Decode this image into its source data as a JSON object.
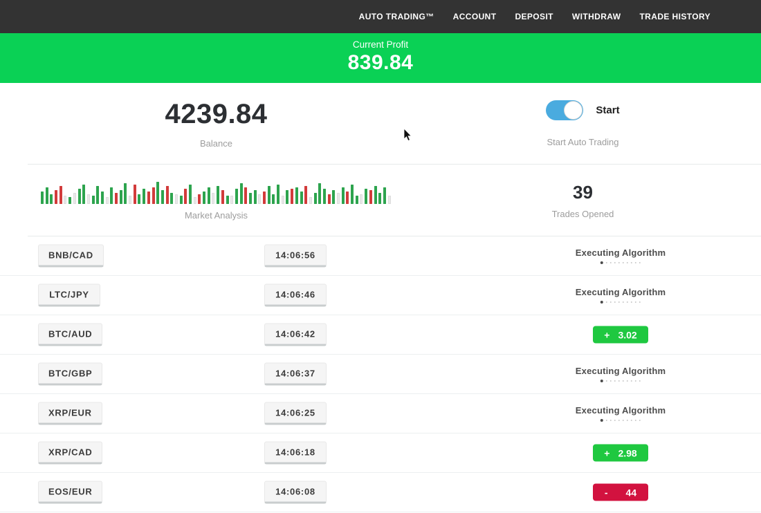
{
  "nav": {
    "items": [
      "AUTO TRADING™",
      "ACCOUNT",
      "DEPOSIT",
      "WITHDRAW",
      "TRADE HISTORY"
    ]
  },
  "profit_banner": {
    "label": "Current Profit",
    "value": "839.84"
  },
  "stats": {
    "balance": {
      "value": "4239.84",
      "label": "Balance"
    },
    "auto_trading": {
      "toggle_label": "Start",
      "label": "Start Auto Trading",
      "toggle_on": true
    },
    "trades": {
      "value": "39",
      "label": "Trades Opened"
    }
  },
  "chart_data": {
    "type": "bar",
    "title": "Market Analysis",
    "note": "decorative mini candlestick strip; encoded as color(g=green,r=red,w=light-gray)+height(px)",
    "bars": [
      "g18",
      "g24",
      "g14",
      "r20",
      "r26",
      "w12",
      "g10",
      "w16",
      "g22",
      "g28",
      "w14",
      "g12",
      "g26",
      "g18",
      "w10",
      "g24",
      "r16",
      "g20",
      "g30",
      "w12",
      "r28",
      "g14",
      "g22",
      "r18",
      "r24",
      "g32",
      "g20",
      "r26",
      "g16",
      "w14",
      "g12",
      "r22",
      "g28",
      "w10",
      "r14",
      "g18",
      "g24",
      "w16",
      "g26",
      "r20",
      "g12",
      "w12",
      "g22",
      "g30",
      "r24",
      "g16",
      "g20",
      "w14",
      "r18",
      "g26",
      "g14",
      "g28",
      "w12",
      "g20",
      "r22",
      "g24",
      "g18",
      "r26",
      "w10",
      "g16",
      "g30",
      "g22",
      "r14",
      "g20",
      "w16",
      "g24",
      "r18",
      "g28",
      "g12",
      "w14",
      "g22",
      "r20",
      "g26",
      "g16",
      "g24",
      "w12"
    ]
  },
  "trades_table": {
    "loader_dots": 10,
    "executing_label": "Executing Algorithm",
    "rows": [
      {
        "pair": "BNB/CAD",
        "time": "14:06:56",
        "status": "executing"
      },
      {
        "pair": "LTC/JPY",
        "time": "14:06:46",
        "status": "executing"
      },
      {
        "pair": "BTC/AUD",
        "time": "14:06:42",
        "status": "profit",
        "sign": "+",
        "amount": "3.02"
      },
      {
        "pair": "BTC/GBP",
        "time": "14:06:37",
        "status": "executing"
      },
      {
        "pair": "XRP/EUR",
        "time": "14:06:25",
        "status": "executing"
      },
      {
        "pair": "XRP/CAD",
        "time": "14:06:18",
        "status": "profit",
        "sign": "+",
        "amount": "2.98"
      },
      {
        "pair": "EOS/EUR",
        "time": "14:06:08",
        "status": "loss",
        "sign": "-",
        "amount": "44"
      }
    ]
  },
  "colors": {
    "nav_bg": "#333333",
    "banner_green": "#0ad155",
    "profit_green": "#1fc840",
    "loss_red": "#d2123f",
    "toggle_blue": "#4aabdf",
    "chart_green": "#2da44e",
    "chart_red": "#d23b3b"
  }
}
